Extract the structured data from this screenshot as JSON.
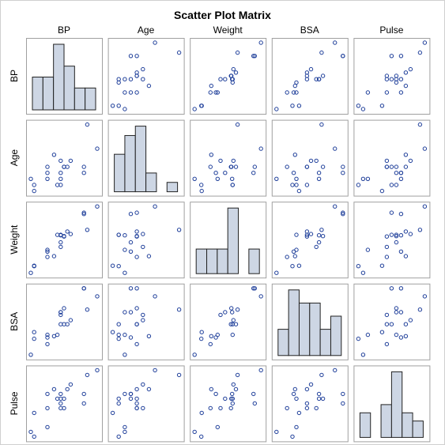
{
  "chart_data": {
    "type": "scatter-matrix",
    "title": "Scatter Plot Matrix",
    "variables": [
      "BP",
      "Age",
      "Weight",
      "BSA",
      "Pulse"
    ],
    "grid": false,
    "diagonal_type": "histogram",
    "observations": [
      {
        "BP": 105,
        "Age": 47,
        "Weight": 85.4,
        "BSA": 1.75,
        "Pulse": 63
      },
      {
        "BP": 115,
        "Age": 49,
        "Weight": 94.2,
        "BSA": 2.1,
        "Pulse": 70
      },
      {
        "BP": 116,
        "Age": 49,
        "Weight": 95.3,
        "BSA": 1.98,
        "Pulse": 72
      },
      {
        "BP": 117,
        "Age": 50,
        "Weight": 94.7,
        "BSA": 2.01,
        "Pulse": 73
      },
      {
        "BP": 112,
        "Age": 51,
        "Weight": 89.4,
        "BSA": 1.89,
        "Pulse": 72
      },
      {
        "BP": 121,
        "Age": 48,
        "Weight": 99.5,
        "BSA": 2.25,
        "Pulse": 71
      },
      {
        "BP": 121,
        "Age": 49,
        "Weight": 99.8,
        "BSA": 2.25,
        "Pulse": 69
      },
      {
        "BP": 110,
        "Age": 47,
        "Weight": 90.9,
        "BSA": 1.9,
        "Pulse": 64
      },
      {
        "BP": 110,
        "Age": 49,
        "Weight": 89.2,
        "BSA": 1.83,
        "Pulse": 68
      },
      {
        "BP": 114,
        "Age": 48,
        "Weight": 92.7,
        "BSA": 2.07,
        "Pulse": 70
      },
      {
        "BP": 114,
        "Age": 47,
        "Weight": 94.4,
        "BSA": 2.07,
        "Pulse": 71
      },
      {
        "BP": 115,
        "Age": 49,
        "Weight": 94.1,
        "BSA": 1.98,
        "Pulse": 68
      },
      {
        "BP": 114,
        "Age": 50,
        "Weight": 91.6,
        "BSA": 2.05,
        "Pulse": 68
      },
      {
        "BP": 106,
        "Age": 45,
        "Weight": 87.1,
        "BSA": 1.92,
        "Pulse": 67
      },
      {
        "BP": 125,
        "Age": 52,
        "Weight": 101.3,
        "BSA": 2.19,
        "Pulse": 76
      },
      {
        "BP": 114,
        "Age": 46,
        "Weight": 94.5,
        "BSA": 1.98,
        "Pulse": 69
      },
      {
        "BP": 106,
        "Age": 46,
        "Weight": 87.0,
        "BSA": 1.87,
        "Pulse": 62
      },
      {
        "BP": 113,
        "Age": 46,
        "Weight": 94.5,
        "BSA": 1.9,
        "Pulse": 70
      },
      {
        "BP": 110,
        "Age": 48,
        "Weight": 90.5,
        "BSA": 1.88,
        "Pulse": 71
      },
      {
        "BP": 122,
        "Age": 56,
        "Weight": 95.7,
        "BSA": 2.09,
        "Pulse": 75
      }
    ],
    "colors": {
      "marker": "#1f3f9a",
      "histogram_fill": "#cdd6e4",
      "histogram_stroke": "#222222",
      "panel_border": "#a0a0a0",
      "text": "#000000"
    }
  }
}
